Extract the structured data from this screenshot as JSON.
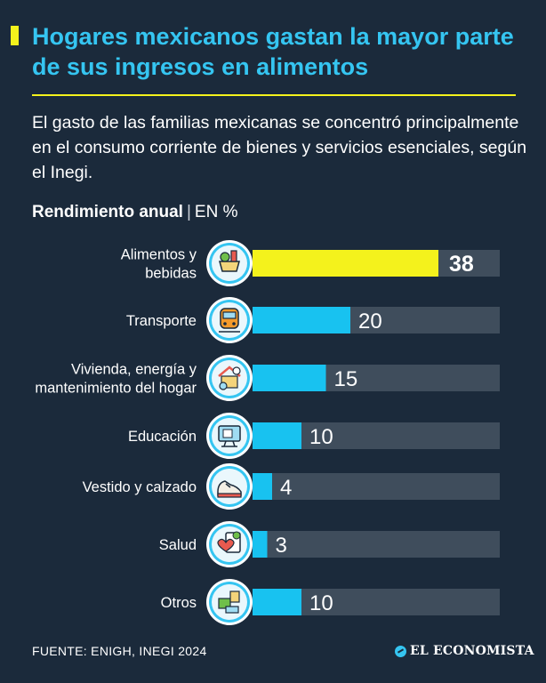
{
  "header": {
    "title": "Hogares mexicanos gastan la mayor parte de sus ingresos en alimentos",
    "subtitle": "El gasto de las familias mexicanas se concentró principalmente en el consumo corriente de bienes y servicios esenciales, según el Inegi.",
    "measure": "Rendimiento anual",
    "separator": "|",
    "unit": "EN %"
  },
  "footer": {
    "source": "FUENTE: ENIGH, INEGI 2024",
    "brand": "EL ECONOMISTA"
  },
  "colors": {
    "background": "#1b2a3b",
    "title": "#35c5f1",
    "highlight_bar": "#f4f21c",
    "bar": "#18c2f0",
    "track": "#3f4d5c",
    "icon_ring": "#ffffff"
  },
  "icons": [
    "food-basket-icon",
    "train-icon",
    "house-tools-icon",
    "computer-education-icon",
    "sneaker-icon",
    "health-clipboard-icon",
    "misc-items-icon"
  ],
  "chart_data": {
    "type": "bar",
    "orientation": "horizontal",
    "categories": [
      [
        "Alimentos y",
        "bebidas"
      ],
      [
        "Transporte"
      ],
      [
        "Vivienda, energía y",
        "mantenimiento del hogar"
      ],
      [
        "Educación"
      ],
      [
        "Vestido y calzado"
      ],
      [
        "Salud"
      ],
      [
        "Otros"
      ]
    ],
    "values": [
      38,
      20,
      15,
      10,
      4,
      3,
      10
    ],
    "highlight_index": 0,
    "xlim": [
      0,
      100
    ]
  }
}
